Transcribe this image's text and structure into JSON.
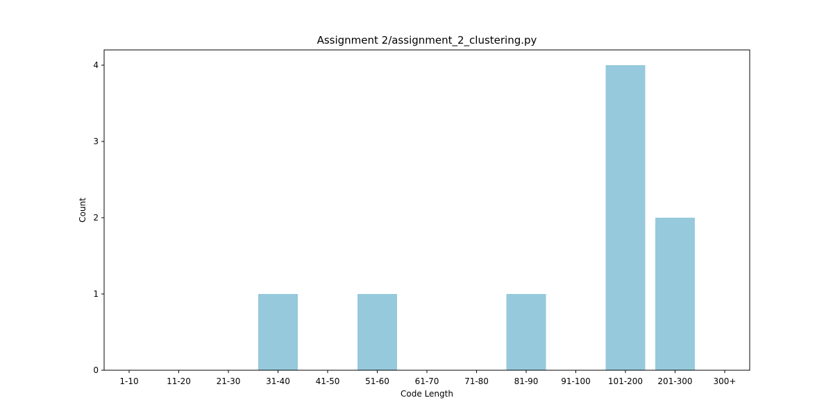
{
  "chart_data": {
    "type": "bar",
    "title": "Assignment 2/assignment_2_clustering.py",
    "xlabel": "Code Length",
    "ylabel": "Count",
    "categories": [
      "1-10",
      "11-20",
      "21-30",
      "31-40",
      "41-50",
      "51-60",
      "61-70",
      "71-80",
      "81-90",
      "91-100",
      "101-200",
      "201-300",
      "300+"
    ],
    "values": [
      0,
      0,
      0,
      1,
      0,
      1,
      0,
      0,
      1,
      0,
      4,
      2,
      0
    ],
    "yticks": [
      0,
      1,
      2,
      3,
      4
    ],
    "ylim": [
      0,
      4.2
    ],
    "grid": false,
    "bar_color": "#96c9dc"
  }
}
